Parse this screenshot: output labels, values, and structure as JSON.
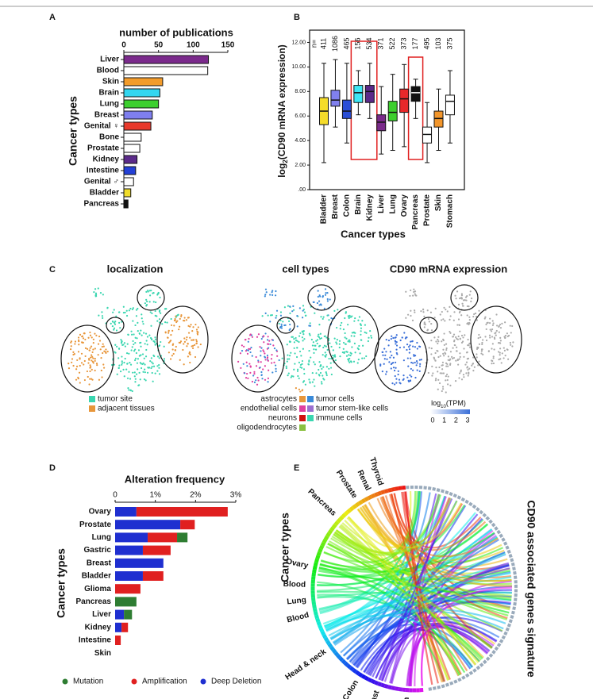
{
  "chart_data": [
    {
      "panel": "A",
      "type": "bar",
      "orientation": "horizontal",
      "title": "number of publications",
      "y_label": "Cancer types",
      "categories": [
        "Liver",
        "Blood",
        "Skin",
        "Brain",
        "Lung",
        "Breast",
        "Genital ♀",
        "Bone",
        "Prostate",
        "Kidney",
        "Intestine",
        "Genital ♂",
        "Bladder",
        "Pancreas"
      ],
      "values": [
        122,
        121,
        56,
        52,
        50,
        41,
        39,
        25,
        23,
        19,
        17,
        14,
        10,
        6
      ],
      "colors": [
        "#7b2a8c",
        "#ffffff",
        "#f39c2b",
        "#33d6f0",
        "#3ccf2e",
        "#7f7fef",
        "#e8392b",
        "#ffffff",
        "#ffffff",
        "#5b2a8a",
        "#2340d6",
        "#ffffff",
        "#f0dc2a",
        "#111111"
      ],
      "xlim": [
        0,
        150
      ],
      "xticks": [
        0,
        50,
        100,
        150
      ]
    },
    {
      "panel": "B",
      "type": "box",
      "y_label": [
        "log",
        "2",
        "(CD90 mRNA expression)"
      ],
      "x_label": "Cancer types",
      "n_label": "n=",
      "categories": [
        "Bladder",
        "Breast",
        "Colon",
        "Brain",
        "Kidney",
        "Liver",
        "Lung",
        "Ovary",
        "Pancreas",
        "Prostate",
        "Skin",
        "Stomach"
      ],
      "counts": [
        411,
        1086,
        465,
        156,
        534,
        371,
        522,
        373,
        177,
        495,
        103,
        375
      ],
      "stats": [
        {
          "low": 2.2,
          "q1": 5.3,
          "median": 6.4,
          "q3": 7.5,
          "high": 10.3
        },
        {
          "low": 5.1,
          "q1": 6.8,
          "median": 7.3,
          "q3": 8.1,
          "high": 10.6
        },
        {
          "low": 3.8,
          "q1": 5.8,
          "median": 6.4,
          "q3": 7.3,
          "high": 10.3
        },
        {
          "low": 6.1,
          "q1": 7.1,
          "median": 7.9,
          "q3": 8.5,
          "high": 9.7
        },
        {
          "low": 5.8,
          "q1": 7.1,
          "median": 8.0,
          "q3": 8.5,
          "high": 10.3
        },
        {
          "low": 2.9,
          "q1": 4.8,
          "median": 5.5,
          "q3": 6.1,
          "high": 8.4
        },
        {
          "low": 3.2,
          "q1": 5.6,
          "median": 6.3,
          "q3": 7.2,
          "high": 9.4
        },
        {
          "low": 3.5,
          "q1": 6.3,
          "median": 7.4,
          "q3": 8.2,
          "high": 10.2
        },
        {
          "low": 5.8,
          "q1": 7.2,
          "median": 7.9,
          "q3": 8.4,
          "high": 9.0
        },
        {
          "low": 2.2,
          "q1": 3.8,
          "median": 4.5,
          "q3": 5.1,
          "high": 7.1
        },
        {
          "low": 3.2,
          "q1": 5.1,
          "median": 5.8,
          "q3": 6.4,
          "high": 8.2
        },
        {
          "low": 3.8,
          "q1": 6.1,
          "median": 7.2,
          "q3": 7.7,
          "high": 9.7
        }
      ],
      "colors": [
        "#f5dc2a",
        "#8080ee",
        "#2a4ed6",
        "#3ee6f5",
        "#5a2a8a",
        "#7a2a8a",
        "#3ccf2e",
        "#e8282a",
        "#111111",
        "#ffffff",
        "#f3962b",
        "#ffffff"
      ],
      "ylim": [
        0,
        13
      ],
      "yticks": [
        {
          "value": 0,
          "label": ".00"
        },
        {
          "value": 2,
          "label": "2.00"
        },
        {
          "value": 4,
          "label": "4.00"
        },
        {
          "value": 6,
          "label": "6.00"
        },
        {
          "value": 8,
          "label": "8.00"
        },
        {
          "value": 10,
          "label": "10.00"
        },
        {
          "value": 12,
          "label": "12.00"
        }
      ]
    },
    {
      "panel": "D",
      "type": "stacked_bar",
      "orientation": "horizontal",
      "title": "Alteration frequency",
      "y_label": "Cancer types",
      "categories": [
        "Ovary",
        "Prostate",
        "Lung",
        "Gastric",
        "Breast",
        "Bladder",
        "Glioma",
        "Pancreas",
        "Liver",
        "Kidney",
        "Intestine",
        "Skin"
      ],
      "series": [
        {
          "name": "Mutation",
          "color": "#2e7d32",
          "values": [
            null,
            null,
            0.26,
            null,
            null,
            null,
            null,
            0.53,
            0.2,
            null,
            null,
            null
          ]
        },
        {
          "name": "Amplification",
          "color": "#e02020",
          "values": [
            2.27,
            0.36,
            0.73,
            0.69,
            null,
            0.51,
            0.63,
            null,
            null,
            0.16,
            0.14,
            null
          ]
        },
        {
          "name": "Deep Deletion",
          "color": "#1f2fd0",
          "values": [
            0.53,
            1.62,
            0.81,
            0.69,
            1.2,
            0.69,
            null,
            null,
            0.22,
            0.16,
            null,
            null
          ]
        }
      ],
      "xlim": [
        0,
        3
      ],
      "xticks": [
        0,
        {
          "value": 1,
          "label": "1%"
        },
        {
          "value": 2,
          "label": "2%"
        },
        {
          "value": 3,
          "label": "3%"
        }
      ]
    }
  ],
  "panel_c": {
    "panel": "C",
    "plots": [
      {
        "title": "localization",
        "legend": [
          {
            "name": "tumor site",
            "color": "#3ad6b0"
          },
          {
            "name": "adjacent tissues",
            "color": "#e8963a"
          }
        ]
      },
      {
        "title": "cell types",
        "legend": [
          {
            "name": "astrocytes",
            "color": "#e8963a"
          },
          {
            "name": "endothelial cells",
            "color": "#e040a0"
          },
          {
            "name": "neurons",
            "color": "#d01010"
          },
          {
            "name": "oligodendrocytes",
            "color": "#8ac040"
          },
          {
            "name": "tumor cells",
            "color": "#3a8ad8"
          },
          {
            "name": "tumor stem-like cells",
            "color": "#9a70d0"
          },
          {
            "name": "immune cells",
            "color": "#3ad6b0"
          }
        ]
      },
      {
        "title": "CD90 mRNA expression",
        "colorbar": {
          "label": [
            "log",
            "10",
            "(TPM)"
          ],
          "ticks": [
            0,
            1,
            2,
            3
          ],
          "colors": [
            "#ffffff",
            "#3a6fd8"
          ]
        }
      }
    ]
  },
  "panel_e": {
    "panel": "E",
    "left_label": "Cancer types",
    "right_label": "CD90 associated genes signature",
    "groups": [
      "Thyroid",
      "Renal",
      "Prostate",
      "Pancreas",
      "Ovary",
      "Blood",
      "Lung",
      "Blood",
      "Head & neck",
      "Colon",
      "Breast",
      "Brain"
    ]
  }
}
